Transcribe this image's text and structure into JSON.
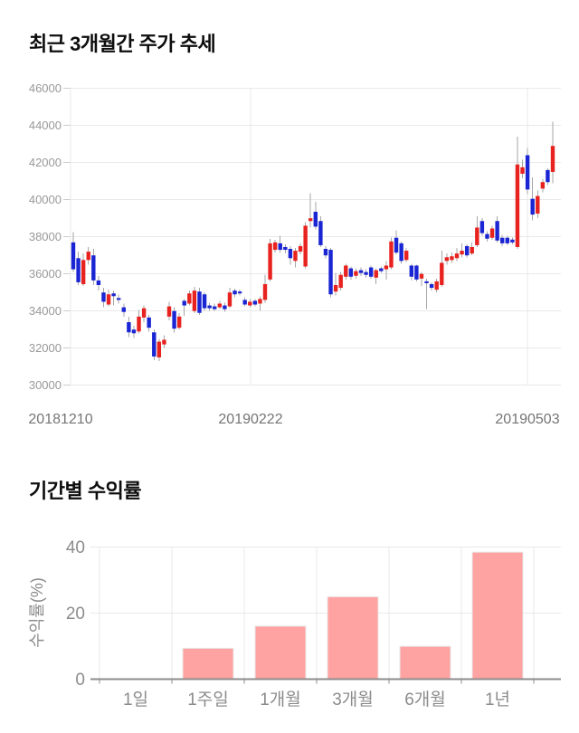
{
  "page": {
    "background": "#ffffff"
  },
  "price_chart": {
    "title": "최근 3개월간 주가 추세"
  },
  "returns_chart": {
    "title": "기간별 수익률"
  },
  "chart_data": [
    {
      "type": "candlestick",
      "title": "최근 3개월간 주가 추세",
      "ylim": [
        30000,
        46000
      ],
      "y_ticks": [
        46000,
        44000,
        42000,
        40000,
        38000,
        36000,
        34000,
        32000,
        30000
      ],
      "x_axis_labels": [
        "20181210",
        "20190222",
        "20190503"
      ],
      "grid": true,
      "colors": {
        "up": "#e8221e",
        "down": "#1a25d3",
        "wick": "#a6a6a6",
        "grid": "#e9e9e9",
        "tick_dash": "#cccccc",
        "y_tick_text": "#999999",
        "x_label_text": "#757575"
      },
      "candle_format": [
        "open",
        "close",
        "low",
        "high"
      ],
      "candles": [
        [
          37700,
          36250,
          36100,
          38250
        ],
        [
          36850,
          35550,
          35400,
          37200
        ],
        [
          35450,
          36750,
          35350,
          37100
        ],
        [
          36750,
          37200,
          36500,
          37450
        ],
        [
          37000,
          35650,
          35400,
          37350
        ],
        [
          35650,
          35400,
          35100,
          35900
        ],
        [
          35000,
          34500,
          34200,
          35250
        ],
        [
          34350,
          34900,
          34250,
          35150
        ],
        [
          34950,
          34800,
          34300,
          35100
        ],
        [
          34700,
          34600,
          34400,
          34900
        ],
        [
          34200,
          33950,
          33700,
          34400
        ],
        [
          33400,
          32850,
          32600,
          33700
        ],
        [
          33000,
          32800,
          32550,
          33200
        ],
        [
          32900,
          33700,
          32800,
          34050
        ],
        [
          33650,
          34150,
          33400,
          34300
        ],
        [
          33650,
          33100,
          32900,
          33800
        ],
        [
          32850,
          31550,
          31350,
          33000
        ],
        [
          31500,
          32350,
          31300,
          32500
        ],
        [
          32200,
          32450,
          32000,
          32700
        ],
        [
          33700,
          34250,
          33500,
          34500
        ],
        [
          34000,
          33050,
          32850,
          34200
        ],
        [
          33100,
          33700,
          33000,
          33900
        ],
        [
          34550,
          34300,
          33750,
          34650
        ],
        [
          34400,
          34950,
          34300,
          35100
        ],
        [
          34000,
          35100,
          33900,
          35300
        ],
        [
          35050,
          33900,
          33800,
          35250
        ],
        [
          34900,
          34150,
          34000,
          35000
        ],
        [
          34300,
          34150,
          34000,
          34450
        ],
        [
          34250,
          34100,
          34000,
          34400
        ],
        [
          34200,
          34400,
          34100,
          34550
        ],
        [
          34300,
          34100,
          33950,
          34450
        ],
        [
          34250,
          35000,
          34150,
          35250
        ],
        [
          35100,
          34900,
          34750,
          35200
        ],
        [
          35050,
          34950,
          34850,
          35150
        ],
        [
          34600,
          34350,
          34250,
          34750
        ],
        [
          34300,
          34500,
          34200,
          34650
        ],
        [
          34550,
          34350,
          34250,
          34650
        ],
        [
          34400,
          34650,
          34000,
          34800
        ],
        [
          34600,
          35450,
          34450,
          35950
        ],
        [
          35700,
          37650,
          35600,
          37900
        ],
        [
          37300,
          37700,
          37150,
          37850
        ],
        [
          37650,
          37300,
          37150,
          38050
        ],
        [
          37450,
          37300,
          37100,
          37600
        ],
        [
          37350,
          36850,
          36500,
          37500
        ],
        [
          36700,
          37250,
          36350,
          37400
        ],
        [
          37200,
          37500,
          37050,
          37650
        ],
        [
          36400,
          38600,
          36300,
          38800
        ],
        [
          38850,
          39000,
          38500,
          40350
        ],
        [
          39350,
          38550,
          38400,
          39900
        ],
        [
          38850,
          37550,
          37450,
          39100
        ],
        [
          37350,
          37000,
          36850,
          37500
        ],
        [
          37300,
          34900,
          34750,
          37400
        ],
        [
          35050,
          35400,
          34850,
          36050
        ],
        [
          35250,
          35950,
          35100,
          36100
        ],
        [
          35850,
          36450,
          35700,
          36550
        ],
        [
          36300,
          35850,
          35700,
          36400
        ],
        [
          35900,
          36150,
          35750,
          36300
        ],
        [
          36200,
          36050,
          35900,
          36350
        ],
        [
          36100,
          35950,
          35800,
          36250
        ],
        [
          36350,
          35850,
          35750,
          36450
        ],
        [
          35800,
          36200,
          35450,
          36300
        ],
        [
          36300,
          36150,
          36050,
          36400
        ],
        [
          36250,
          36450,
          35700,
          36700
        ],
        [
          36350,
          37750,
          36250,
          37950
        ],
        [
          37950,
          37150,
          37050,
          38350
        ],
        [
          37650,
          36700,
          36550,
          37750
        ],
        [
          36750,
          37250,
          36650,
          37400
        ],
        [
          36450,
          35850,
          35650,
          36550
        ],
        [
          36450,
          35700,
          35600,
          36500
        ],
        [
          35750,
          36000,
          35350,
          36100
        ],
        [
          35600,
          35500,
          34100,
          35750
        ],
        [
          35450,
          35250,
          35100,
          35550
        ],
        [
          35150,
          35600,
          35000,
          35750
        ],
        [
          35400,
          36600,
          35300,
          37250
        ],
        [
          36700,
          36900,
          36500,
          37100
        ],
        [
          36750,
          36950,
          36600,
          37150
        ],
        [
          36850,
          37100,
          36700,
          37400
        ],
        [
          37050,
          37250,
          36900,
          37650
        ],
        [
          37500,
          37000,
          36900,
          37600
        ],
        [
          37100,
          37450,
          37000,
          37700
        ],
        [
          37550,
          38500,
          37450,
          39100
        ],
        [
          38850,
          38200,
          38050,
          39000
        ],
        [
          38150,
          37900,
          37750,
          38300
        ],
        [
          37950,
          38450,
          37850,
          38600
        ],
        [
          38850,
          37800,
          37700,
          39100
        ],
        [
          37950,
          37650,
          37500,
          38100
        ],
        [
          37950,
          37650,
          37550,
          38050
        ],
        [
          37850,
          37700,
          37600,
          37950
        ],
        [
          37450,
          41900,
          37350,
          43400
        ],
        [
          41400,
          41750,
          41150,
          42150
        ],
        [
          42400,
          40550,
          40300,
          42800
        ],
        [
          40050,
          39200,
          38900,
          41200
        ],
        [
          39250,
          40200,
          39000,
          40500
        ],
        [
          40600,
          40950,
          40400,
          41100
        ],
        [
          41600,
          40950,
          40800,
          41700
        ],
        [
          41500,
          42900,
          40900,
          44200
        ]
      ]
    },
    {
      "type": "bar",
      "title": "기간별 수익률",
      "ylabel": "수익률(%)",
      "categories": [
        "1일",
        "1주일",
        "1개월",
        "3개월",
        "6개월",
        "1년"
      ],
      "values": [
        0,
        9.4,
        16.1,
        25.0,
        10.0,
        38.5
      ],
      "ylim": [
        0,
        40
      ],
      "y_ticks": [
        0,
        20,
        40
      ],
      "grid": true,
      "legend": false,
      "colors": {
        "bar_fill": "#ffa2a2",
        "bar_stroke": "#e8e8e8",
        "grid": "#e9e9e9",
        "axis_line": "#8c8c8c",
        "text": "#8c8c8c"
      }
    }
  ]
}
